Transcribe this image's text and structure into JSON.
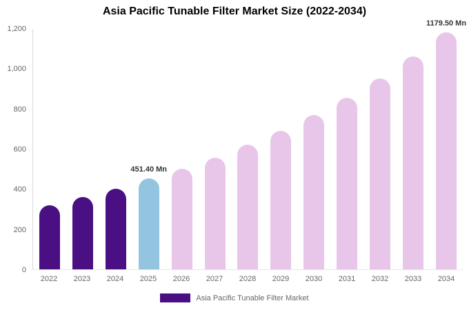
{
  "title": "Asia Pacific Tunable Filter Market Size (2022-2034)",
  "legend": {
    "label": "Asia Pacific Tunable Filter Market",
    "swatch_color": "#4a0f82"
  },
  "colors": {
    "historical": "#4a0f82",
    "highlight": "#93c5e1",
    "forecast": "#e8c6e9"
  },
  "chart_data": {
    "type": "bar",
    "title": "Asia Pacific Tunable Filter Market Size (2022-2034)",
    "categories": [
      "2022",
      "2023",
      "2024",
      "2025",
      "2026",
      "2027",
      "2028",
      "2029",
      "2030",
      "2031",
      "2032",
      "2033",
      "2034"
    ],
    "values": [
      320,
      360,
      400,
      451.4,
      500,
      555,
      620,
      690,
      768,
      855,
      950,
      1058,
      1179.5
    ],
    "segments": [
      "historical",
      "historical",
      "historical",
      "highlight",
      "forecast",
      "forecast",
      "forecast",
      "forecast",
      "forecast",
      "forecast",
      "forecast",
      "forecast",
      "forecast"
    ],
    "unit": "Mn",
    "xlabel": "",
    "ylabel": "",
    "ylim": [
      0,
      1200
    ],
    "yticks": [
      "0",
      "200",
      "400",
      "600",
      "800",
      "1,000",
      "1,200"
    ],
    "annotations": [
      {
        "category": "2025",
        "text": "451.40 Mn"
      },
      {
        "category": "2034",
        "text": "1179.50 Mn"
      }
    ],
    "grid": false,
    "legend_position": "bottom"
  }
}
